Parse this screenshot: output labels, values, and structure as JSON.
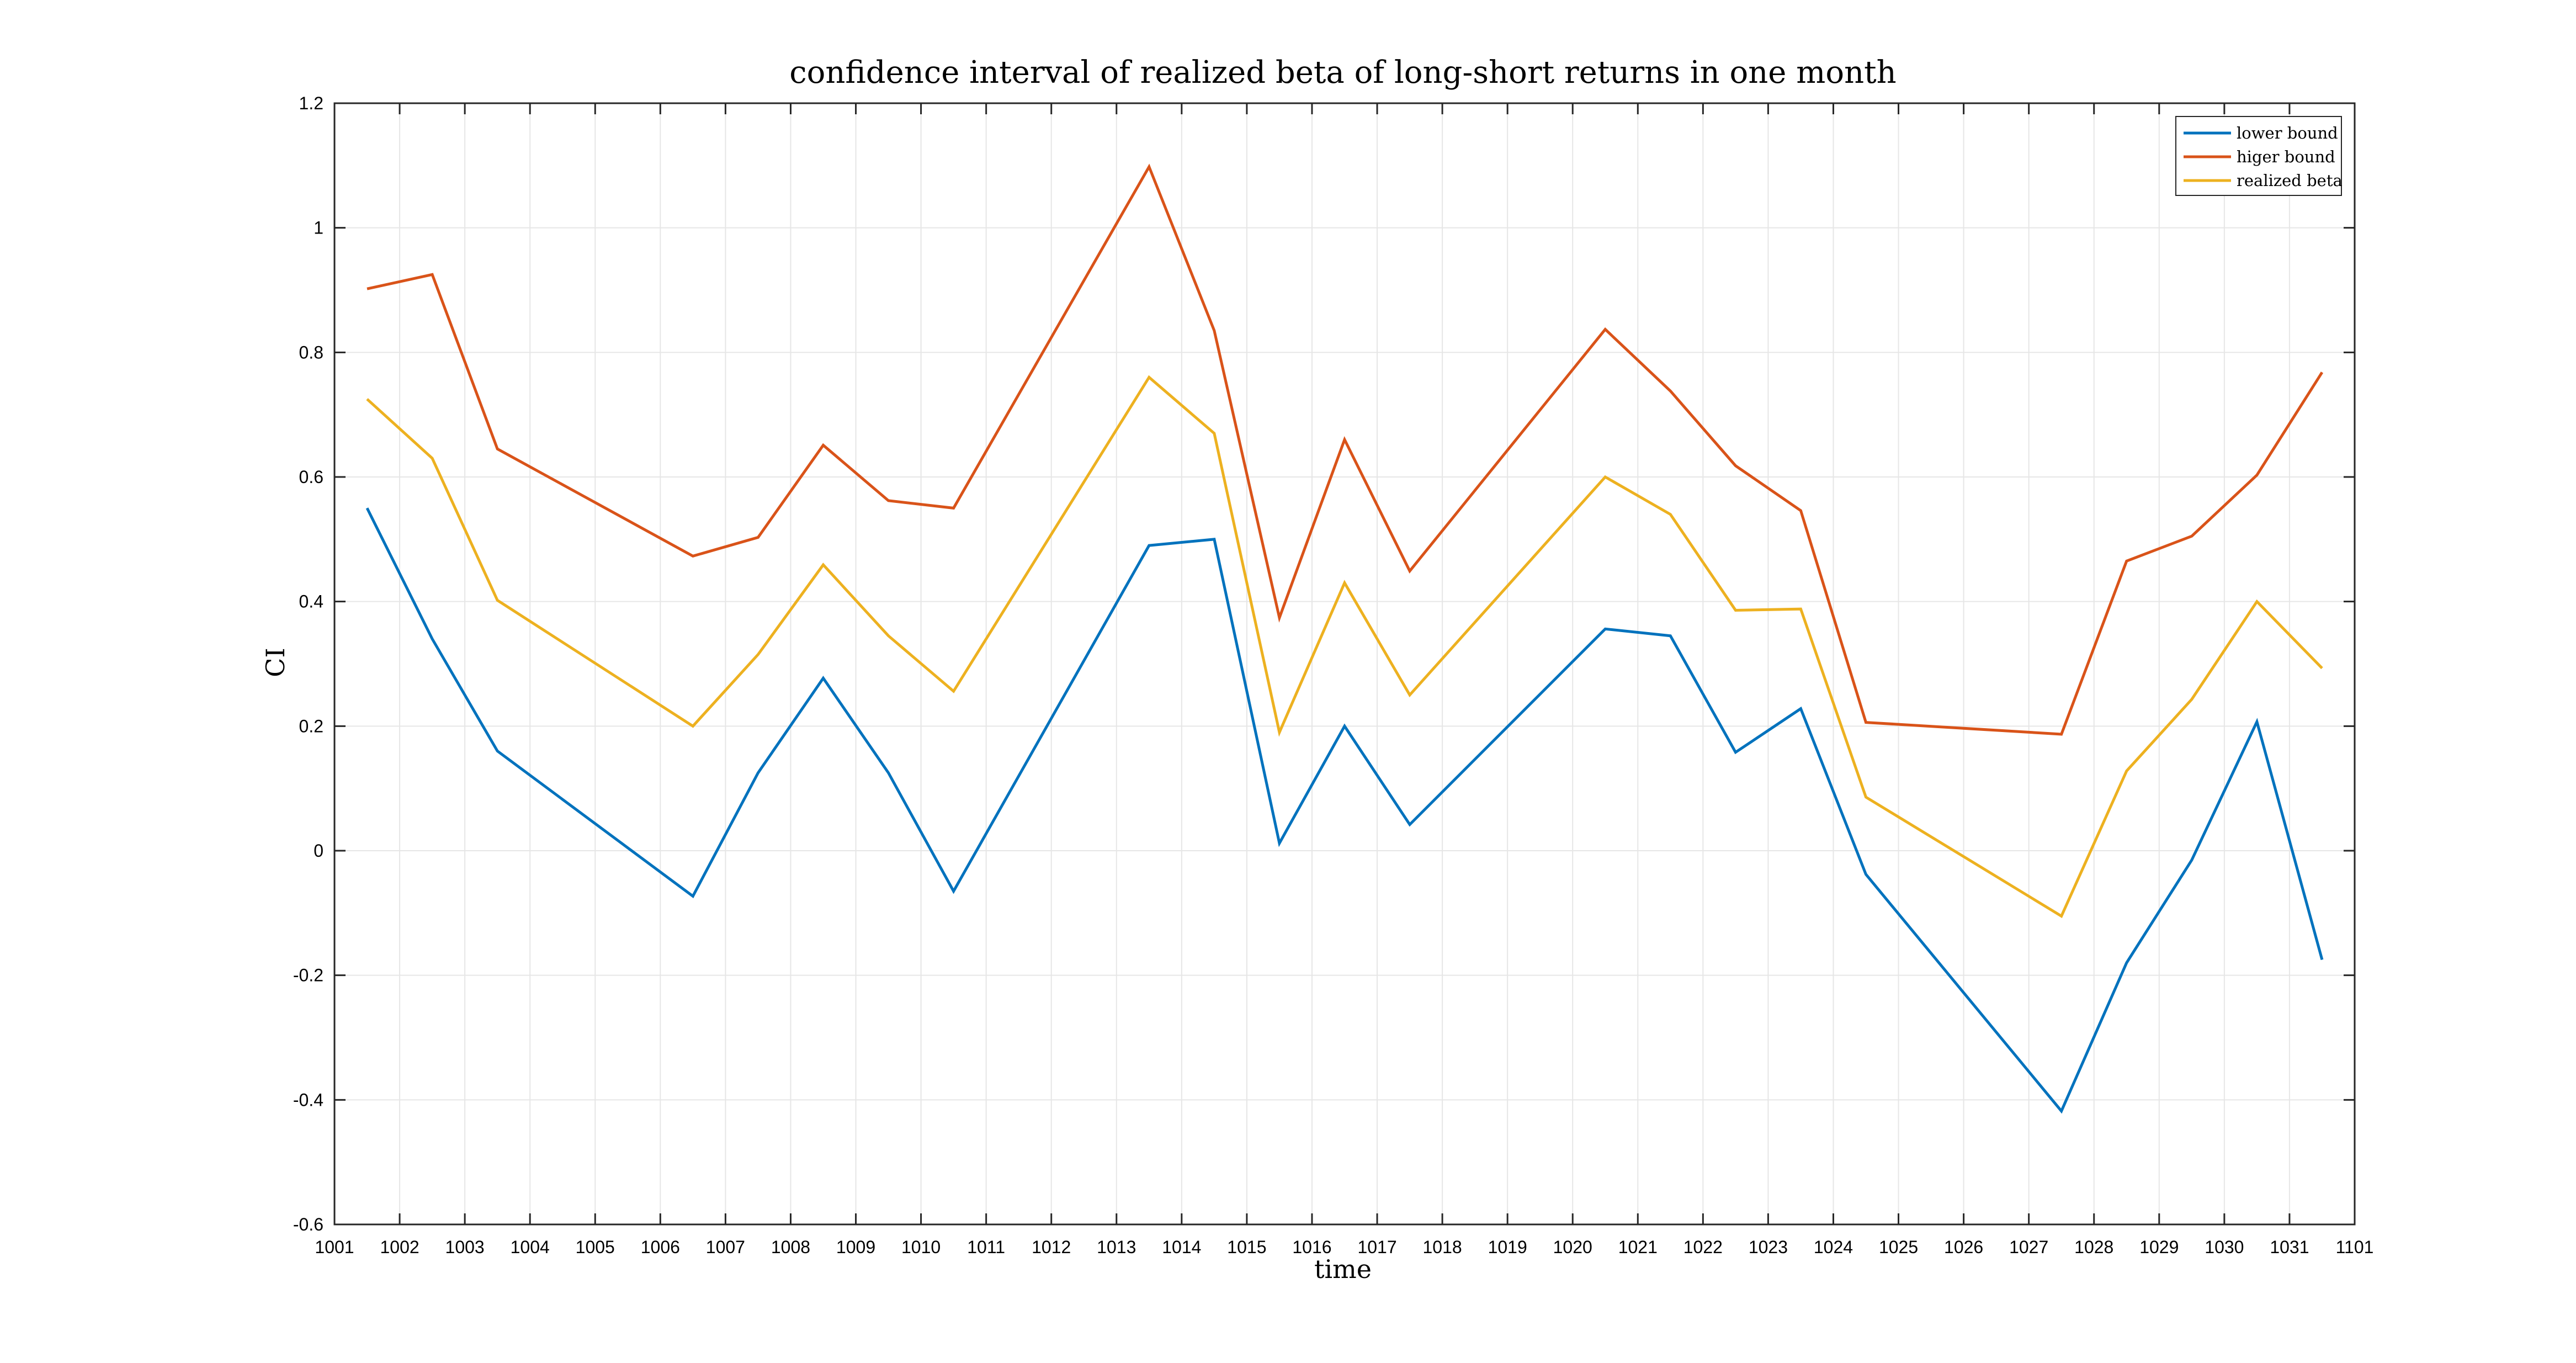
{
  "chart_data": {
    "type": "line",
    "title": "confidence interval of realized beta of long-short returns in one month",
    "xlabel": "time",
    "ylabel": "CI",
    "xlim": [
      1001,
      1101
    ],
    "ylim": [
      -0.6,
      1.2
    ],
    "x_tick_labels": [
      "1001",
      "1002",
      "1003",
      "1004",
      "1005",
      "1006",
      "1007",
      "1008",
      "1009",
      "1010",
      "1011",
      "1012",
      "1013",
      "1014",
      "1015",
      "1016",
      "1017",
      "1018",
      "1019",
      "1020",
      "1021",
      "1022",
      "1023",
      "1024",
      "1025",
      "1026",
      "1027",
      "1028",
      "1029",
      "1030",
      "1031",
      "1101"
    ],
    "y_ticks": [
      -0.6,
      -0.4,
      -0.2,
      0,
      0.2,
      0.4,
      0.6,
      0.8,
      1,
      1.2
    ],
    "y_tick_labels": [
      "-0.6",
      "-0.4",
      "-0.2",
      "0",
      "0.2",
      "0.4",
      "0.6",
      "0.8",
      "1",
      "1.2"
    ],
    "grid": true,
    "legend_position": "top-right",
    "x": [
      1001.5,
      1002.5,
      1003.5,
      1006.5,
      1007.5,
      1008.5,
      1009.5,
      1010.5,
      1013.5,
      1014.5,
      1015.5,
      1016.5,
      1017.5,
      1020.5,
      1021.5,
      1022.5,
      1023.5,
      1024.5,
      1027.5,
      1028.5,
      1029.5,
      1030.5,
      1031.5
    ],
    "series": [
      {
        "name": "lower bound",
        "color": "#0072BD",
        "values": [
          0.55,
          0.34,
          0.16,
          -0.073,
          0.125,
          0.277,
          0.125,
          -0.065,
          0.49,
          0.5,
          0.012,
          0.2,
          0.042,
          0.356,
          0.345,
          0.158,
          0.228,
          -0.038,
          -0.418,
          -0.18,
          -0.015,
          0.207,
          -0.175
        ]
      },
      {
        "name": "higer bound",
        "color": "#D95319",
        "values": [
          0.902,
          0.925,
          0.645,
          0.473,
          0.503,
          0.651,
          0.562,
          0.55,
          1.098,
          0.835,
          0.374,
          0.66,
          0.449,
          0.837,
          0.738,
          0.618,
          0.546,
          0.206,
          0.187,
          0.465,
          0.505,
          0.603,
          0.768
        ]
      },
      {
        "name": "realized beta",
        "color": "#EDB120",
        "values": [
          0.725,
          0.63,
          0.402,
          0.2,
          0.315,
          0.459,
          0.345,
          0.256,
          0.76,
          0.67,
          0.19,
          0.43,
          0.25,
          0.6,
          0.54,
          0.386,
          0.388,
          0.086,
          -0.105,
          0.128,
          0.243,
          0.4,
          0.293
        ]
      }
    ]
  }
}
